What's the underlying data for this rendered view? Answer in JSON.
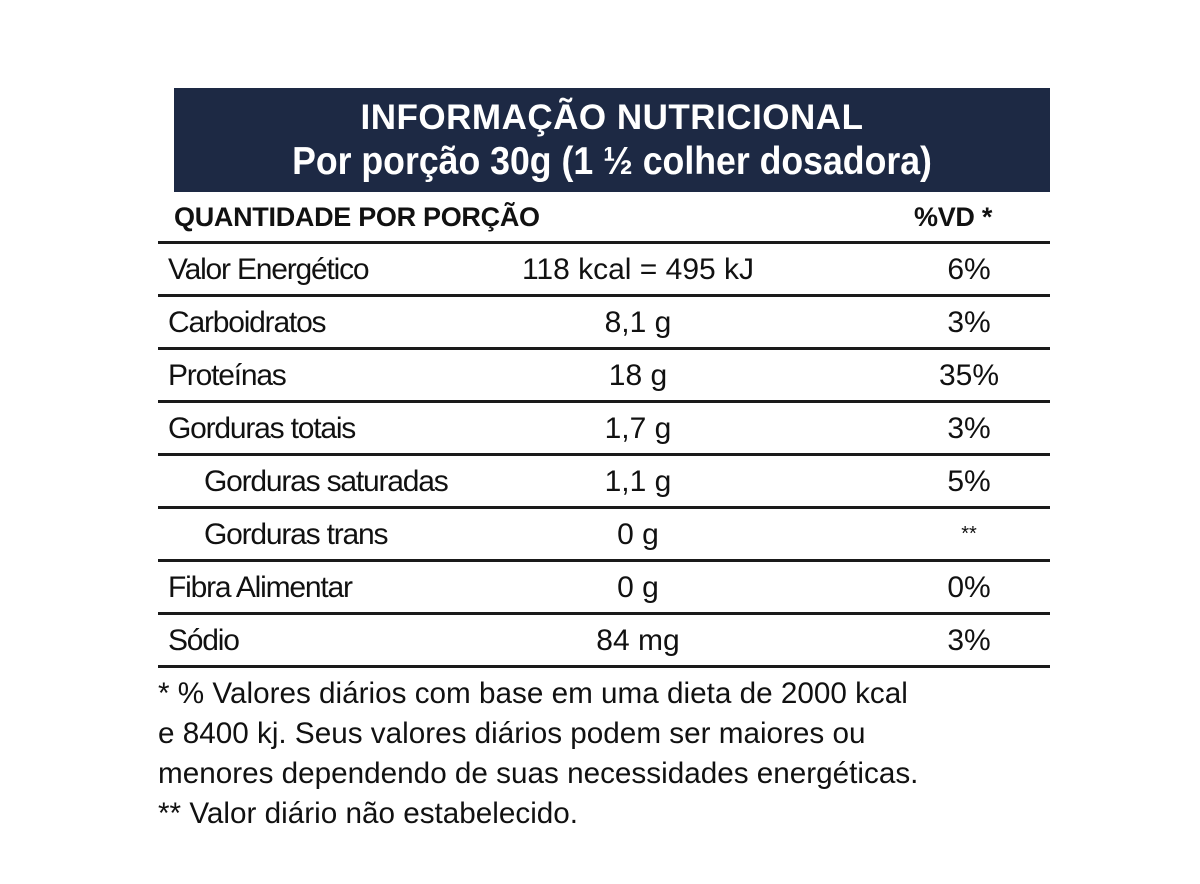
{
  "header": {
    "title": "INFORMAÇÃO NUTRICIONAL",
    "serving": "Por porção 30g (1 ½ colher dosadora)"
  },
  "columns": {
    "quantity": "QUANTIDADE POR PORÇÃO",
    "daily_value": "%VD  *"
  },
  "rows": [
    {
      "name": "Valor Energético",
      "amount": "118 kcal = 495 kJ",
      "vd": "6%"
    },
    {
      "name": "Carboidratos",
      "amount": "8,1 g",
      "vd": "3%"
    },
    {
      "name": "Proteínas",
      "amount": "18 g",
      "vd": "35%"
    },
    {
      "name": "Gorduras totais",
      "amount": "1,7 g",
      "vd": "3%"
    },
    {
      "name": "Gorduras saturadas",
      "amount": "1,1 g",
      "vd": "5%"
    },
    {
      "name": "Gorduras trans",
      "amount": "0 g",
      "vd": "**"
    },
    {
      "name": "Fibra Alimentar",
      "amount": "0 g",
      "vd": "0%"
    },
    {
      "name": "Sódio",
      "amount": "84 mg",
      "vd": "3%"
    }
  ],
  "footnotes": [
    "* %  Valores diários com base em uma dieta de 2000 kcal",
    "e 8400 kj.  Seus  valores  diários podem ser maiores ou",
    "menores dependendo de suas necessidades energéticas.",
    "** Valor diário não estabelecido."
  ],
  "colors": {
    "header_background": "#1d2944",
    "text": "#111111"
  }
}
